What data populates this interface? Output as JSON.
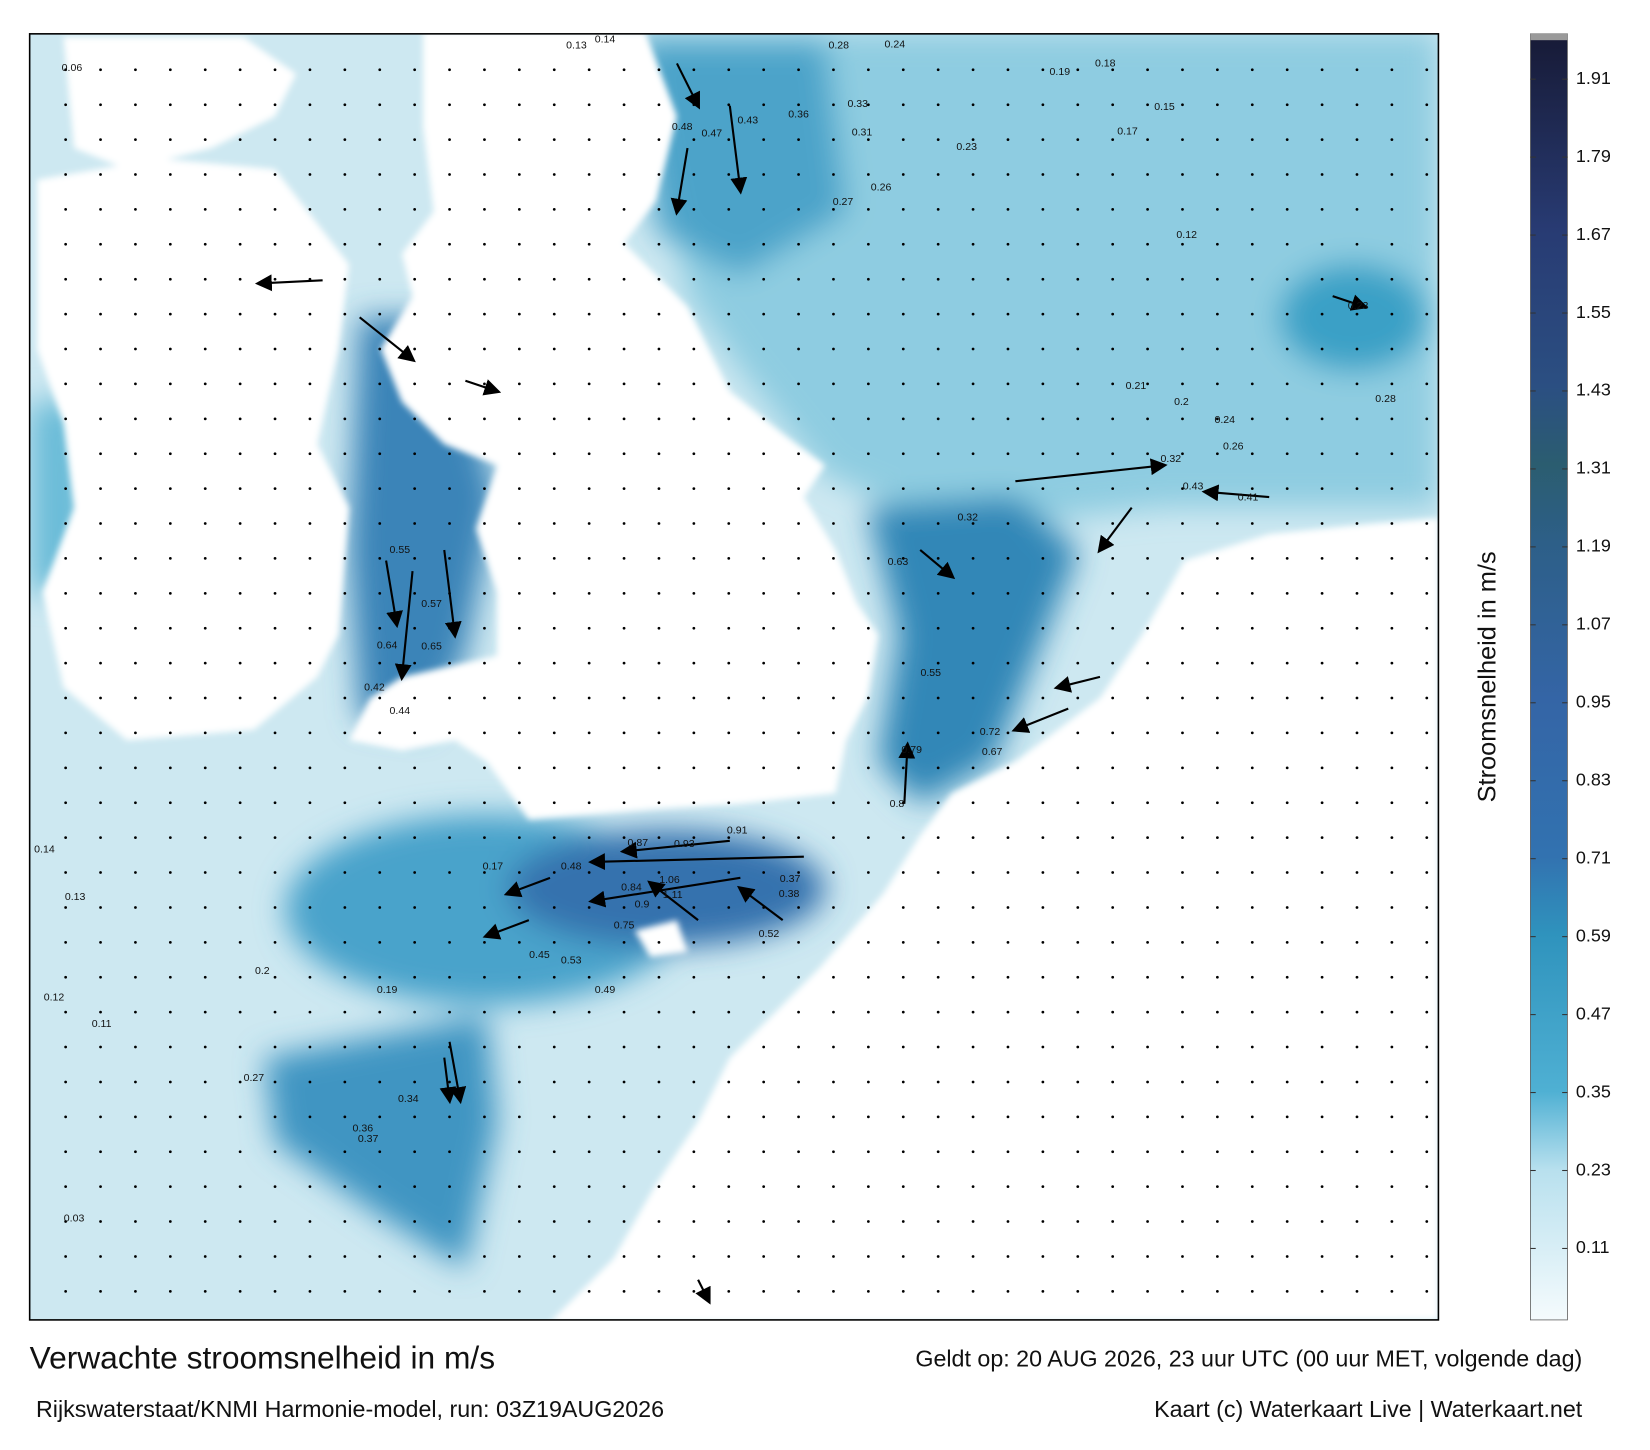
{
  "map": {
    "title": "Verwachte stroomsnelheid in m/s",
    "valid_time": "Geldt op: 20 AUG 2026, 23 uur UTC (00 uur MET, volgende dag)",
    "source": "Rijkswaterstaat/KNMI Harmonie-model, run: 03Z19AUG2026",
    "credit": "Kaart (c) Waterkaart Live | Waterkaart.net",
    "colorbar": {
      "label": "Stroomsnelheid in m/s",
      "lim": [
        0,
        1.97
      ],
      "ticks": [
        0.11,
        0.23,
        0.35,
        0.47,
        0.59,
        0.71,
        0.83,
        0.95,
        1.07,
        1.19,
        1.31,
        1.43,
        1.55,
        1.67,
        1.79,
        1.91
      ],
      "colors": [
        {
          "value": 0,
          "color": "#f5fbfd"
        },
        {
          "value": 0.23,
          "color": "#b8e0ee"
        },
        {
          "value": 0.35,
          "color": "#4fb0d3"
        },
        {
          "value": 0.59,
          "color": "#2f93bd"
        },
        {
          "value": 0.71,
          "color": "#3272b0"
        },
        {
          "value": 0.95,
          "color": "#3465a6"
        },
        {
          "value": 1.19,
          "color": "#2d5f88"
        },
        {
          "value": 1.31,
          "color": "#2b5d70"
        },
        {
          "value": 1.43,
          "color": "#2b4f82"
        },
        {
          "value": 1.67,
          "color": "#283b73"
        },
        {
          "value": 1.97,
          "color": "#171a36"
        }
      ]
    },
    "labels": [
      0.06,
      0.13,
      0.14,
      0.28,
      0.24,
      0.19,
      0.18,
      0.48,
      0.47,
      0.43,
      0.36,
      0.33,
      0.31,
      0.23,
      0.26,
      0.27,
      0.15,
      0.17,
      0.12,
      0.23,
      0.28,
      0.32,
      0.43,
      0.41,
      0.26,
      0.24,
      0.2,
      0.21,
      0.32,
      0.63,
      0.55,
      0.72,
      0.67,
      0.79,
      0.8,
      0.93,
      0.87,
      0.91,
      1.06,
      1.11,
      0.84,
      0.9,
      0.75,
      0.52,
      0.37,
      0.38,
      0.48,
      0.45,
      0.53,
      0.49,
      0.64,
      0.65,
      0.57,
      0.55,
      0.42,
      0.44,
      0.27,
      0.34,
      0.36,
      0.37,
      0.14,
      0.13,
      0.12,
      0.03,
      0.2,
      0.11,
      0.19,
      0.17
    ]
  }
}
